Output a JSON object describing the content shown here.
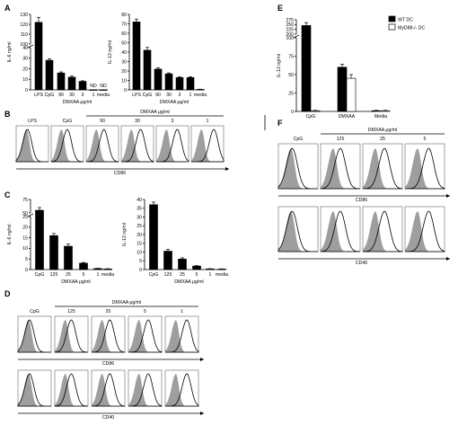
{
  "chart_data": [
    {
      "panel": "A",
      "type": "bar",
      "ylabel": "IL-6 ng/ml",
      "categories": [
        "LPS",
        "CpG",
        "90",
        "30",
        "3",
        "1",
        "media"
      ],
      "values": [
        122,
        28,
        16,
        12,
        8,
        0,
        0
      ],
      "errors": [
        5,
        1.5,
        1,
        1,
        0.6,
        0,
        0
      ],
      "value_labels": [
        "",
        "",
        "",
        "",
        "",
        "ND",
        "ND"
      ],
      "yticks": [
        "0",
        "10",
        "20",
        "30",
        "40",
        "100",
        "110",
        "120",
        "130"
      ],
      "xgroup_label": "DMXAA μg/ml"
    },
    {
      "panel": "A",
      "type": "bar",
      "ylabel": "IL-12 ng/ml",
      "categories": [
        "LPS",
        "CpG",
        "90",
        "30",
        "3",
        "1",
        "media"
      ],
      "values": [
        72,
        42,
        22,
        17,
        13,
        13,
        0.5
      ],
      "errors": [
        3,
        3,
        1.5,
        1,
        1,
        1,
        0.2
      ],
      "yticks": [
        "0",
        "10",
        "20",
        "30",
        "40",
        "50",
        "60",
        "70",
        "80"
      ],
      "xgroup_label": "DMXAA μg/ml"
    },
    {
      "panel": "C",
      "type": "bar",
      "ylabel": "IL-6 ng/ml",
      "categories": [
        "CpG",
        "125",
        "25",
        "5",
        "1",
        "media"
      ],
      "values": [
        55,
        16,
        11,
        3,
        0.5,
        0.3
      ],
      "errors": [
        5,
        1,
        1,
        0.3,
        0.1,
        0.1
      ],
      "yticks": [
        "0",
        "5",
        "10",
        "15",
        "20",
        "25",
        "50",
        "75"
      ],
      "xgroup_label": "DMXAA μg/ml"
    },
    {
      "panel": "C",
      "type": "bar",
      "ylabel": "IL-12 ng/ml",
      "categories": [
        "CpG",
        "125",
        "25",
        "5",
        "1",
        "media"
      ],
      "values": [
        37,
        10.5,
        6,
        2,
        0.4,
        0.3
      ],
      "errors": [
        1.5,
        1,
        0.7,
        0.3,
        0.1,
        0.1
      ],
      "yticks": [
        "0",
        "5",
        "10",
        "15",
        "20",
        "25",
        "30",
        "35",
        "40"
      ],
      "xgroup_label": "DMXAA μg/ml"
    },
    {
      "panel": "E",
      "type": "bar",
      "ylabel": "IL-12 ng/ml",
      "categories": [
        "CpG",
        "DMXAA",
        "Media"
      ],
      "series": [
        {
          "name": "WT DC",
          "values": [
            245,
            60,
            1
          ],
          "errors": [
            15,
            4,
            0.5
          ]
        },
        {
          "name": "MyD88-/- DC",
          "values": [
            1,
            45,
            1
          ],
          "errors": [
            0.5,
            5,
            0.5
          ]
        }
      ],
      "yticks": [
        "0",
        "25",
        "50",
        "75",
        "100",
        "200",
        "225",
        "250",
        "275"
      ],
      "legend": "top-right"
    },
    {
      "panel": "B",
      "type": "histogram-grid",
      "group_label": "DMXAA μg/ml",
      "columns": [
        "LPS",
        "CpG",
        "90",
        "30",
        "3",
        "1"
      ],
      "rows": [
        "CD86"
      ]
    },
    {
      "panel": "D",
      "type": "histogram-grid",
      "group_label": "DMXAA μg/ml",
      "columns": [
        "CpG",
        "125",
        "25",
        "5",
        "1"
      ],
      "rows": [
        "CD86",
        "CD40"
      ]
    },
    {
      "panel": "F",
      "type": "histogram-grid",
      "group_label": "DMXAA μg/ml",
      "columns": [
        "CpG",
        "125",
        "25",
        "5"
      ],
      "rows": [
        "CD86",
        "CD40"
      ]
    }
  ],
  "panel_letters": [
    "A",
    "B",
    "C",
    "D",
    "E",
    "F"
  ],
  "text": {
    "nd": "ND"
  },
  "colors": {
    "bar_black": "#000000",
    "bar_white": "#ffffff",
    "histogram_fill": "#9e9e9e"
  }
}
